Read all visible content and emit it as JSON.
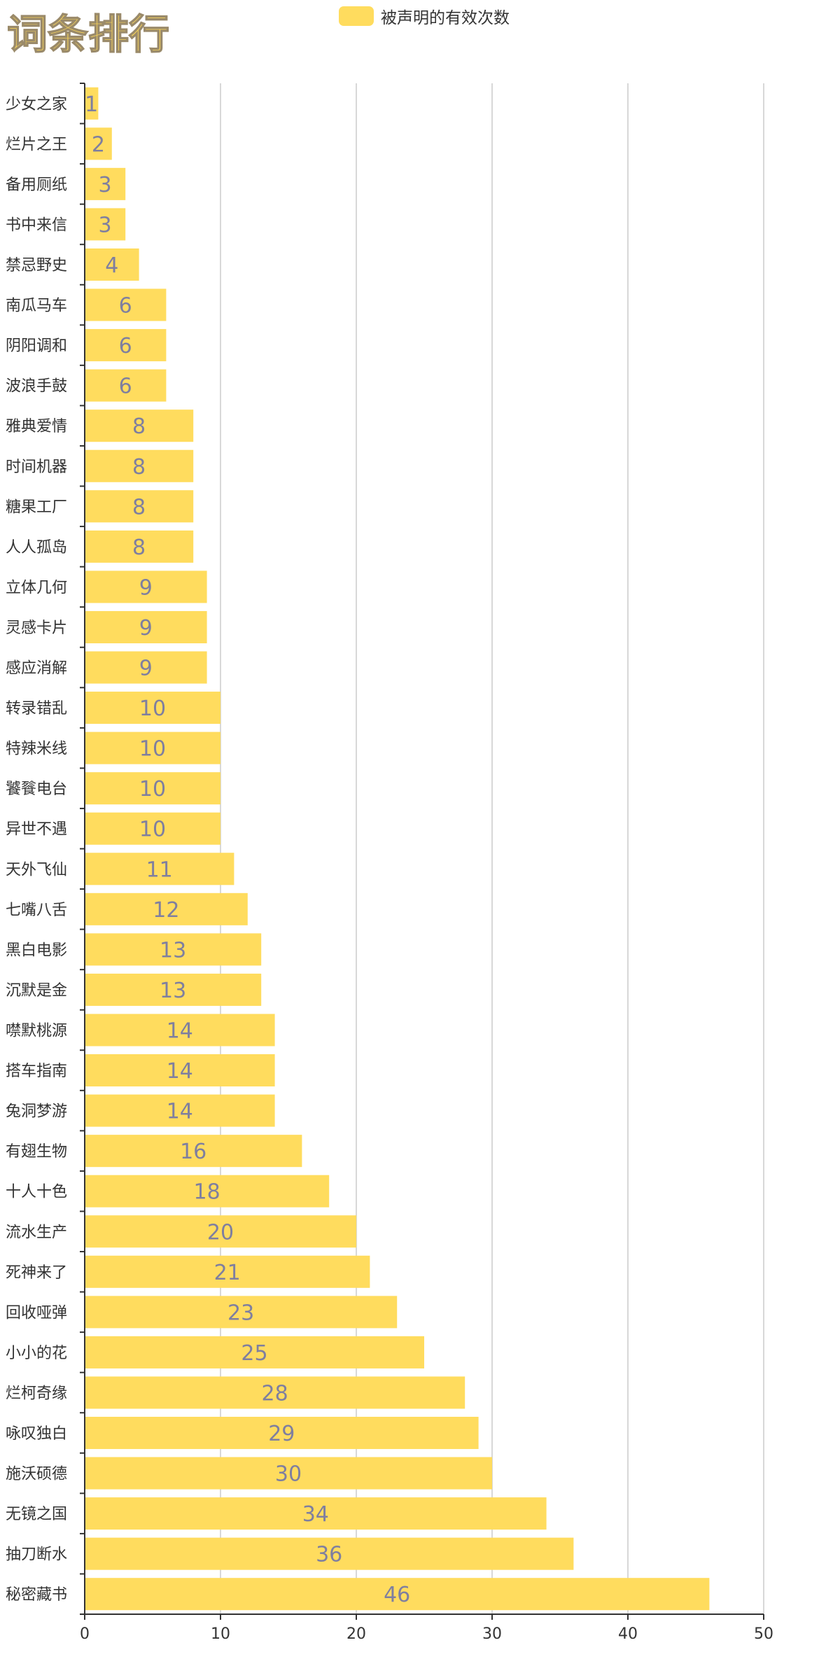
{
  "chart_data": {
    "type": "bar",
    "orientation": "horizontal",
    "title": "词条排行",
    "legend": [
      "被声明的有效次数"
    ],
    "legend_position": "top",
    "colors": {
      "bar": "#ffdc5e",
      "data_label": "#7f7f9f",
      "grid": "#cccccc",
      "title": "#f7d35a"
    },
    "xlim": [
      0,
      50
    ],
    "x_ticks": [
      0,
      10,
      20,
      30,
      40,
      50
    ],
    "grid": true,
    "categories": [
      "少女之家",
      "烂片之王",
      "备用厕纸",
      "书中来信",
      "禁忌野史",
      "南瓜马车",
      "阴阳调和",
      "波浪手鼓",
      "雅典爱情",
      "时间机器",
      "糖果工厂",
      "人人孤岛",
      "立体几何",
      "灵感卡片",
      "感应消解",
      "转录错乱",
      "特辣米线",
      "饕餮电台",
      "异世不遇",
      "天外飞仙",
      "七嘴八舌",
      "黑白电影",
      "沉默是金",
      "噤默桃源",
      "搭车指南",
      "兔洞梦游",
      "有翅生物",
      "十人十色",
      "流水生产",
      "死神来了",
      "回收哑弹",
      "小小的花",
      "烂柯奇缘",
      "咏叹独白",
      "施沃硕德",
      "无镜之国",
      "抽刀断水",
      "秘密藏书"
    ],
    "series": [
      {
        "name": "被声明的有效次数",
        "values": [
          1,
          2,
          3,
          3,
          4,
          6,
          6,
          6,
          8,
          8,
          8,
          8,
          9,
          9,
          9,
          10,
          10,
          10,
          10,
          11,
          12,
          13,
          13,
          14,
          14,
          14,
          16,
          18,
          20,
          21,
          23,
          25,
          28,
          29,
          30,
          34,
          36,
          46
        ]
      }
    ]
  }
}
